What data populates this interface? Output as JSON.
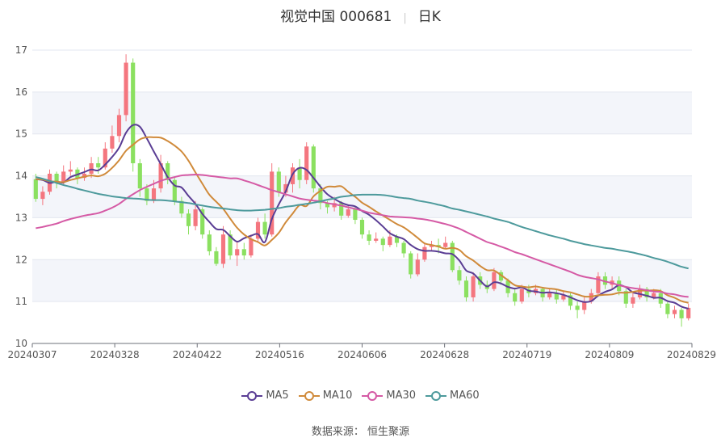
{
  "header": {
    "name": "视觉中国 000681",
    "period": "日K"
  },
  "source": "数据来源： 恒生聚源",
  "chart_data": {
    "type": "candlestick",
    "x_tick_labels": [
      "20240307",
      "20240328",
      "20240422",
      "20240516",
      "20240606",
      "20240628",
      "20240719",
      "20240809",
      "20240829"
    ],
    "ylim": [
      10,
      17
    ],
    "y_ticks": [
      10,
      11,
      12,
      13,
      14,
      15,
      16,
      17
    ],
    "grid": true,
    "legend_position": "bottom",
    "colors": {
      "up": "#f4767f",
      "down": "#8be060"
    },
    "candles": [
      [
        13.92,
        13.45,
        14.05,
        13.38
      ],
      [
        13.45,
        13.62,
        13.75,
        13.3
      ],
      [
        13.62,
        14.05,
        14.15,
        13.55
      ],
      [
        14.05,
        13.85,
        14.1,
        13.7
      ],
      [
        13.85,
        14.1,
        14.25,
        13.8
      ],
      [
        14.1,
        14.15,
        14.35,
        14.0
      ],
      [
        14.15,
        13.95,
        14.2,
        13.8
      ],
      [
        13.95,
        14.05,
        14.2,
        13.88
      ],
      [
        14.05,
        14.3,
        14.45,
        13.95
      ],
      [
        14.3,
        14.2,
        14.45,
        14.05
      ],
      [
        14.2,
        14.65,
        14.8,
        14.15
      ],
      [
        14.65,
        14.95,
        15.2,
        14.55
      ],
      [
        14.95,
        15.45,
        15.6,
        14.8
      ],
      [
        15.45,
        16.7,
        16.9,
        15.3
      ],
      [
        16.7,
        14.3,
        16.8,
        14.1
      ],
      [
        14.3,
        13.7,
        14.4,
        13.5
      ],
      [
        13.7,
        13.4,
        13.8,
        13.3
      ],
      [
        13.4,
        13.7,
        13.9,
        13.35
      ],
      [
        13.7,
        14.3,
        14.5,
        13.6
      ],
      [
        14.3,
        13.9,
        14.35,
        13.8
      ],
      [
        13.9,
        13.4,
        13.95,
        13.3
      ],
      [
        13.4,
        13.1,
        13.5,
        13.0
      ],
      [
        13.1,
        12.8,
        13.2,
        12.6
      ],
      [
        12.8,
        13.2,
        13.4,
        12.7
      ],
      [
        13.2,
        12.6,
        13.25,
        12.5
      ],
      [
        12.6,
        12.2,
        12.7,
        12.1
      ],
      [
        12.2,
        11.9,
        12.3,
        11.85
      ],
      [
        11.9,
        12.6,
        12.8,
        11.8
      ],
      [
        12.6,
        12.1,
        12.7,
        12.0
      ],
      [
        12.1,
        12.25,
        12.45,
        11.85
      ],
      [
        12.25,
        12.1,
        12.4,
        12.0
      ],
      [
        12.1,
        12.5,
        12.6,
        12.05
      ],
      [
        12.5,
        12.9,
        13.0,
        12.4
      ],
      [
        12.9,
        12.6,
        13.1,
        12.5
      ],
      [
        12.6,
        14.1,
        14.3,
        12.55
      ],
      [
        14.1,
        13.6,
        14.2,
        13.5
      ],
      [
        13.6,
        13.8,
        14.0,
        13.5
      ],
      [
        13.8,
        14.2,
        14.3,
        13.6
      ],
      [
        14.2,
        13.9,
        14.4,
        13.7
      ],
      [
        13.9,
        14.7,
        14.8,
        13.8
      ],
      [
        14.7,
        13.7,
        14.75,
        13.6
      ],
      [
        13.7,
        13.35,
        13.8,
        13.2
      ],
      [
        13.35,
        13.25,
        13.4,
        13.1
      ],
      [
        13.25,
        13.35,
        13.5,
        13.15
      ],
      [
        13.35,
        13.05,
        13.4,
        12.95
      ],
      [
        13.05,
        13.2,
        13.3,
        13.0
      ],
      [
        13.2,
        12.95,
        13.25,
        12.85
      ],
      [
        12.95,
        12.6,
        13.0,
        12.5
      ],
      [
        12.6,
        12.45,
        12.7,
        12.35
      ],
      [
        12.45,
        12.5,
        12.65,
        12.4
      ],
      [
        12.5,
        12.35,
        12.55,
        12.2
      ],
      [
        12.35,
        12.55,
        12.7,
        12.3
      ],
      [
        12.55,
        12.4,
        12.6,
        12.3
      ],
      [
        12.4,
        12.15,
        12.45,
        12.05
      ],
      [
        12.15,
        11.65,
        12.2,
        11.55
      ],
      [
        11.65,
        12.0,
        12.15,
        11.6
      ],
      [
        12.0,
        12.3,
        12.4,
        11.95
      ],
      [
        12.3,
        12.35,
        12.45,
        12.2
      ],
      [
        12.35,
        12.3,
        12.5,
        12.15
      ],
      [
        12.3,
        12.4,
        12.55,
        12.25
      ],
      [
        12.4,
        11.75,
        12.45,
        11.7
      ],
      [
        11.75,
        11.5,
        11.85,
        11.4
      ],
      [
        11.5,
        11.1,
        11.6,
        11.0
      ],
      [
        11.1,
        11.6,
        11.7,
        11.0
      ],
      [
        11.6,
        11.4,
        11.7,
        11.3
      ],
      [
        11.4,
        11.3,
        11.5,
        11.2
      ],
      [
        11.3,
        11.7,
        11.8,
        11.25
      ],
      [
        11.7,
        11.5,
        11.75,
        11.4
      ],
      [
        11.5,
        11.2,
        11.55,
        11.1
      ],
      [
        11.2,
        11.0,
        11.3,
        10.9
      ],
      [
        11.0,
        11.3,
        11.4,
        10.95
      ],
      [
        11.3,
        11.2,
        11.4,
        11.1
      ],
      [
        11.2,
        11.3,
        11.4,
        11.15
      ],
      [
        11.3,
        11.1,
        11.35,
        11.0
      ],
      [
        11.1,
        11.2,
        11.3,
        11.05
      ],
      [
        11.2,
        11.05,
        11.3,
        10.95
      ],
      [
        11.05,
        11.15,
        11.25,
        11.0
      ],
      [
        11.15,
        10.9,
        11.2,
        10.8
      ],
      [
        10.9,
        10.8,
        11.0,
        10.6
      ],
      [
        10.8,
        11.0,
        11.1,
        10.7
      ],
      [
        11.0,
        11.2,
        11.3,
        10.95
      ],
      [
        11.2,
        11.6,
        11.7,
        11.15
      ],
      [
        11.6,
        11.4,
        11.7,
        11.3
      ],
      [
        11.4,
        11.5,
        11.6,
        11.3
      ],
      [
        11.5,
        11.25,
        11.6,
        11.15
      ],
      [
        11.25,
        10.95,
        11.3,
        10.85
      ],
      [
        10.95,
        11.1,
        11.2,
        10.85
      ],
      [
        11.1,
        11.3,
        11.4,
        11.05
      ],
      [
        11.3,
        11.1,
        11.35,
        11.0
      ],
      [
        11.1,
        11.2,
        11.3,
        11.05
      ],
      [
        11.2,
        10.95,
        11.3,
        10.85
      ],
      [
        10.95,
        10.7,
        11.0,
        10.6
      ],
      [
        10.7,
        10.8,
        10.9,
        10.6
      ],
      [
        10.8,
        10.6,
        10.85,
        10.4
      ],
      [
        10.6,
        10.85,
        10.95,
        10.55
      ]
    ],
    "series": [
      {
        "name": "MA5",
        "color": "#5a3d94",
        "values": [
          13.92,
          13.9,
          13.83,
          13.86,
          13.84,
          13.97,
          14.03,
          14.09,
          14.15,
          14.13,
          14.27,
          14.45,
          14.67,
          15.03,
          15.21,
          15.17,
          14.89,
          14.58,
          14.28,
          13.97,
          13.77,
          13.72,
          13.52,
          13.33,
          13.09,
          12.9,
          12.73,
          12.71,
          12.56,
          12.43,
          12.51,
          12.57,
          12.61,
          12.42,
          12.97,
          13.32,
          13.63,
          14.04,
          14.19,
          14.14,
          13.95,
          13.74,
          13.56,
          13.45,
          13.36,
          13.3,
          13.27,
          13.16,
          13.07,
          12.94,
          12.79,
          12.63,
          12.55,
          12.49,
          12.35,
          12.25,
          12.21,
          12.21,
          12.19,
          12.15,
          12.13,
          11.98,
          11.74,
          11.67,
          11.5,
          11.36,
          11.46,
          11.43,
          11.35,
          11.31,
          11.34,
          11.26,
          11.24,
          11.21,
          11.22,
          11.2,
          11.16,
          11.1,
          11.03,
          10.99,
          11.01,
          11.14,
          11.23,
          11.29,
          11.39,
          11.34,
          11.22,
          11.18,
          11.14,
          11.09,
          11.09,
          11.01,
          10.97,
          10.88,
          10.83
        ]
      },
      {
        "name": "MA10",
        "color": "#d08a3a",
        "values": [
          13.92,
          13.91,
          13.87,
          13.86,
          13.85,
          13.9,
          13.94,
          13.98,
          14.01,
          13.99,
          14.05,
          14.19,
          14.37,
          14.6,
          14.74,
          14.87,
          14.92,
          14.92,
          14.91,
          14.83,
          14.72,
          14.58,
          14.36,
          14.08,
          13.81,
          13.55,
          13.38,
          13.21,
          12.98,
          12.76,
          12.6,
          12.49,
          12.42,
          12.34,
          12.47,
          12.64,
          12.89,
          13.1,
          13.3,
          13.28,
          13.51,
          13.64,
          13.74,
          13.74,
          13.75,
          13.62,
          13.5,
          13.36,
          13.26,
          13.15,
          13.05,
          12.95,
          12.85,
          12.77,
          12.65,
          12.52,
          12.39,
          12.35,
          12.31,
          12.26,
          12.28,
          12.23,
          12.08,
          11.98,
          11.85,
          11.75,
          11.74,
          11.63,
          11.51,
          11.39,
          11.36,
          11.34,
          11.36,
          11.33,
          11.31,
          11.29,
          11.25,
          11.22,
          11.17,
          11.12,
          11.12,
          11.15,
          11.16,
          11.17,
          11.21,
          11.21,
          11.23,
          11.26,
          11.26,
          11.27,
          11.25,
          11.15,
          11.09,
          11.01,
          10.97
        ]
      },
      {
        "name": "MA30",
        "color": "#d55aa5",
        "values": [
          12.75,
          12.78,
          12.82,
          12.86,
          12.92,
          12.97,
          13.01,
          13.05,
          13.08,
          13.11,
          13.17,
          13.24,
          13.33,
          13.45,
          13.56,
          13.66,
          13.74,
          13.81,
          13.88,
          13.93,
          13.97,
          14.01,
          14.02,
          14.03,
          14.02,
          14.0,
          13.98,
          13.96,
          13.94,
          13.94,
          13.89,
          13.84,
          13.78,
          13.72,
          13.66,
          13.61,
          13.56,
          13.51,
          13.46,
          13.43,
          13.41,
          13.39,
          13.35,
          13.32,
          13.29,
          13.25,
          13.21,
          13.17,
          13.12,
          13.09,
          13.06,
          13.03,
          13.02,
          13.01,
          13.0,
          12.98,
          12.96,
          12.93,
          12.89,
          12.85,
          12.8,
          12.74,
          12.66,
          12.58,
          12.5,
          12.42,
          12.37,
          12.31,
          12.25,
          12.18,
          12.13,
          12.07,
          12.01,
          11.95,
          11.89,
          11.83,
          11.77,
          11.71,
          11.64,
          11.59,
          11.56,
          11.53,
          11.48,
          11.44,
          11.39,
          11.35,
          11.32,
          11.3,
          11.27,
          11.24,
          11.23,
          11.19,
          11.17,
          11.13,
          11.11
        ]
      },
      {
        "name": "MA60",
        "color": "#4d9a9c",
        "values": [
          13.97,
          13.93,
          13.88,
          13.83,
          13.78,
          13.74,
          13.69,
          13.65,
          13.61,
          13.57,
          13.54,
          13.51,
          13.49,
          13.47,
          13.46,
          13.45,
          13.43,
          13.42,
          13.42,
          13.41,
          13.39,
          13.37,
          13.35,
          13.32,
          13.29,
          13.26,
          13.24,
          13.22,
          13.2,
          13.18,
          13.17,
          13.17,
          13.18,
          13.19,
          13.21,
          13.23,
          13.26,
          13.28,
          13.31,
          13.33,
          13.36,
          13.39,
          13.43,
          13.46,
          13.5,
          13.52,
          13.54,
          13.55,
          13.55,
          13.55,
          13.54,
          13.52,
          13.49,
          13.47,
          13.45,
          13.41,
          13.38,
          13.35,
          13.31,
          13.27,
          13.22,
          13.19,
          13.15,
          13.11,
          13.07,
          13.03,
          12.98,
          12.94,
          12.9,
          12.84,
          12.78,
          12.73,
          12.68,
          12.63,
          12.58,
          12.54,
          12.5,
          12.45,
          12.41,
          12.37,
          12.34,
          12.31,
          12.28,
          12.26,
          12.23,
          12.2,
          12.17,
          12.13,
          12.09,
          12.04,
          12.0,
          11.95,
          11.89,
          11.83,
          11.79
        ]
      }
    ]
  }
}
